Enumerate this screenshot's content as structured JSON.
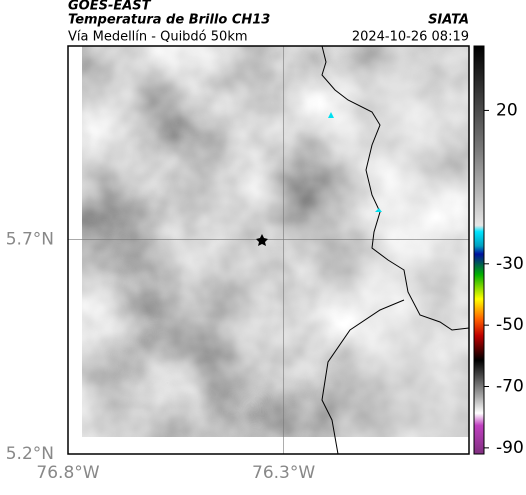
{
  "header": {
    "title": "GOES-EAST",
    "subtitle": "Temperatura de Brillo CH13",
    "route": "Vía Medellín - Quibdó 50km",
    "source": "SIATA",
    "timestamp": "2024-10-26 08:19"
  },
  "map": {
    "lonlim": [
      -76.8,
      -75.87
    ],
    "latlim": [
      5.2,
      6.15
    ],
    "lon_ticks": [
      {
        "value": -76.8,
        "label": "76.8°W"
      },
      {
        "value": -76.3,
        "label": "76.3°W"
      }
    ],
    "lat_ticks": [
      {
        "value": 5.7,
        "label": "5.7°N"
      },
      {
        "value": 5.2,
        "label": "5.2°N"
      }
    ]
  },
  "colorbar": {
    "lim": [
      -92,
      41
    ],
    "ticks": [
      20,
      -30,
      -50,
      -70,
      -90
    ]
  }
}
